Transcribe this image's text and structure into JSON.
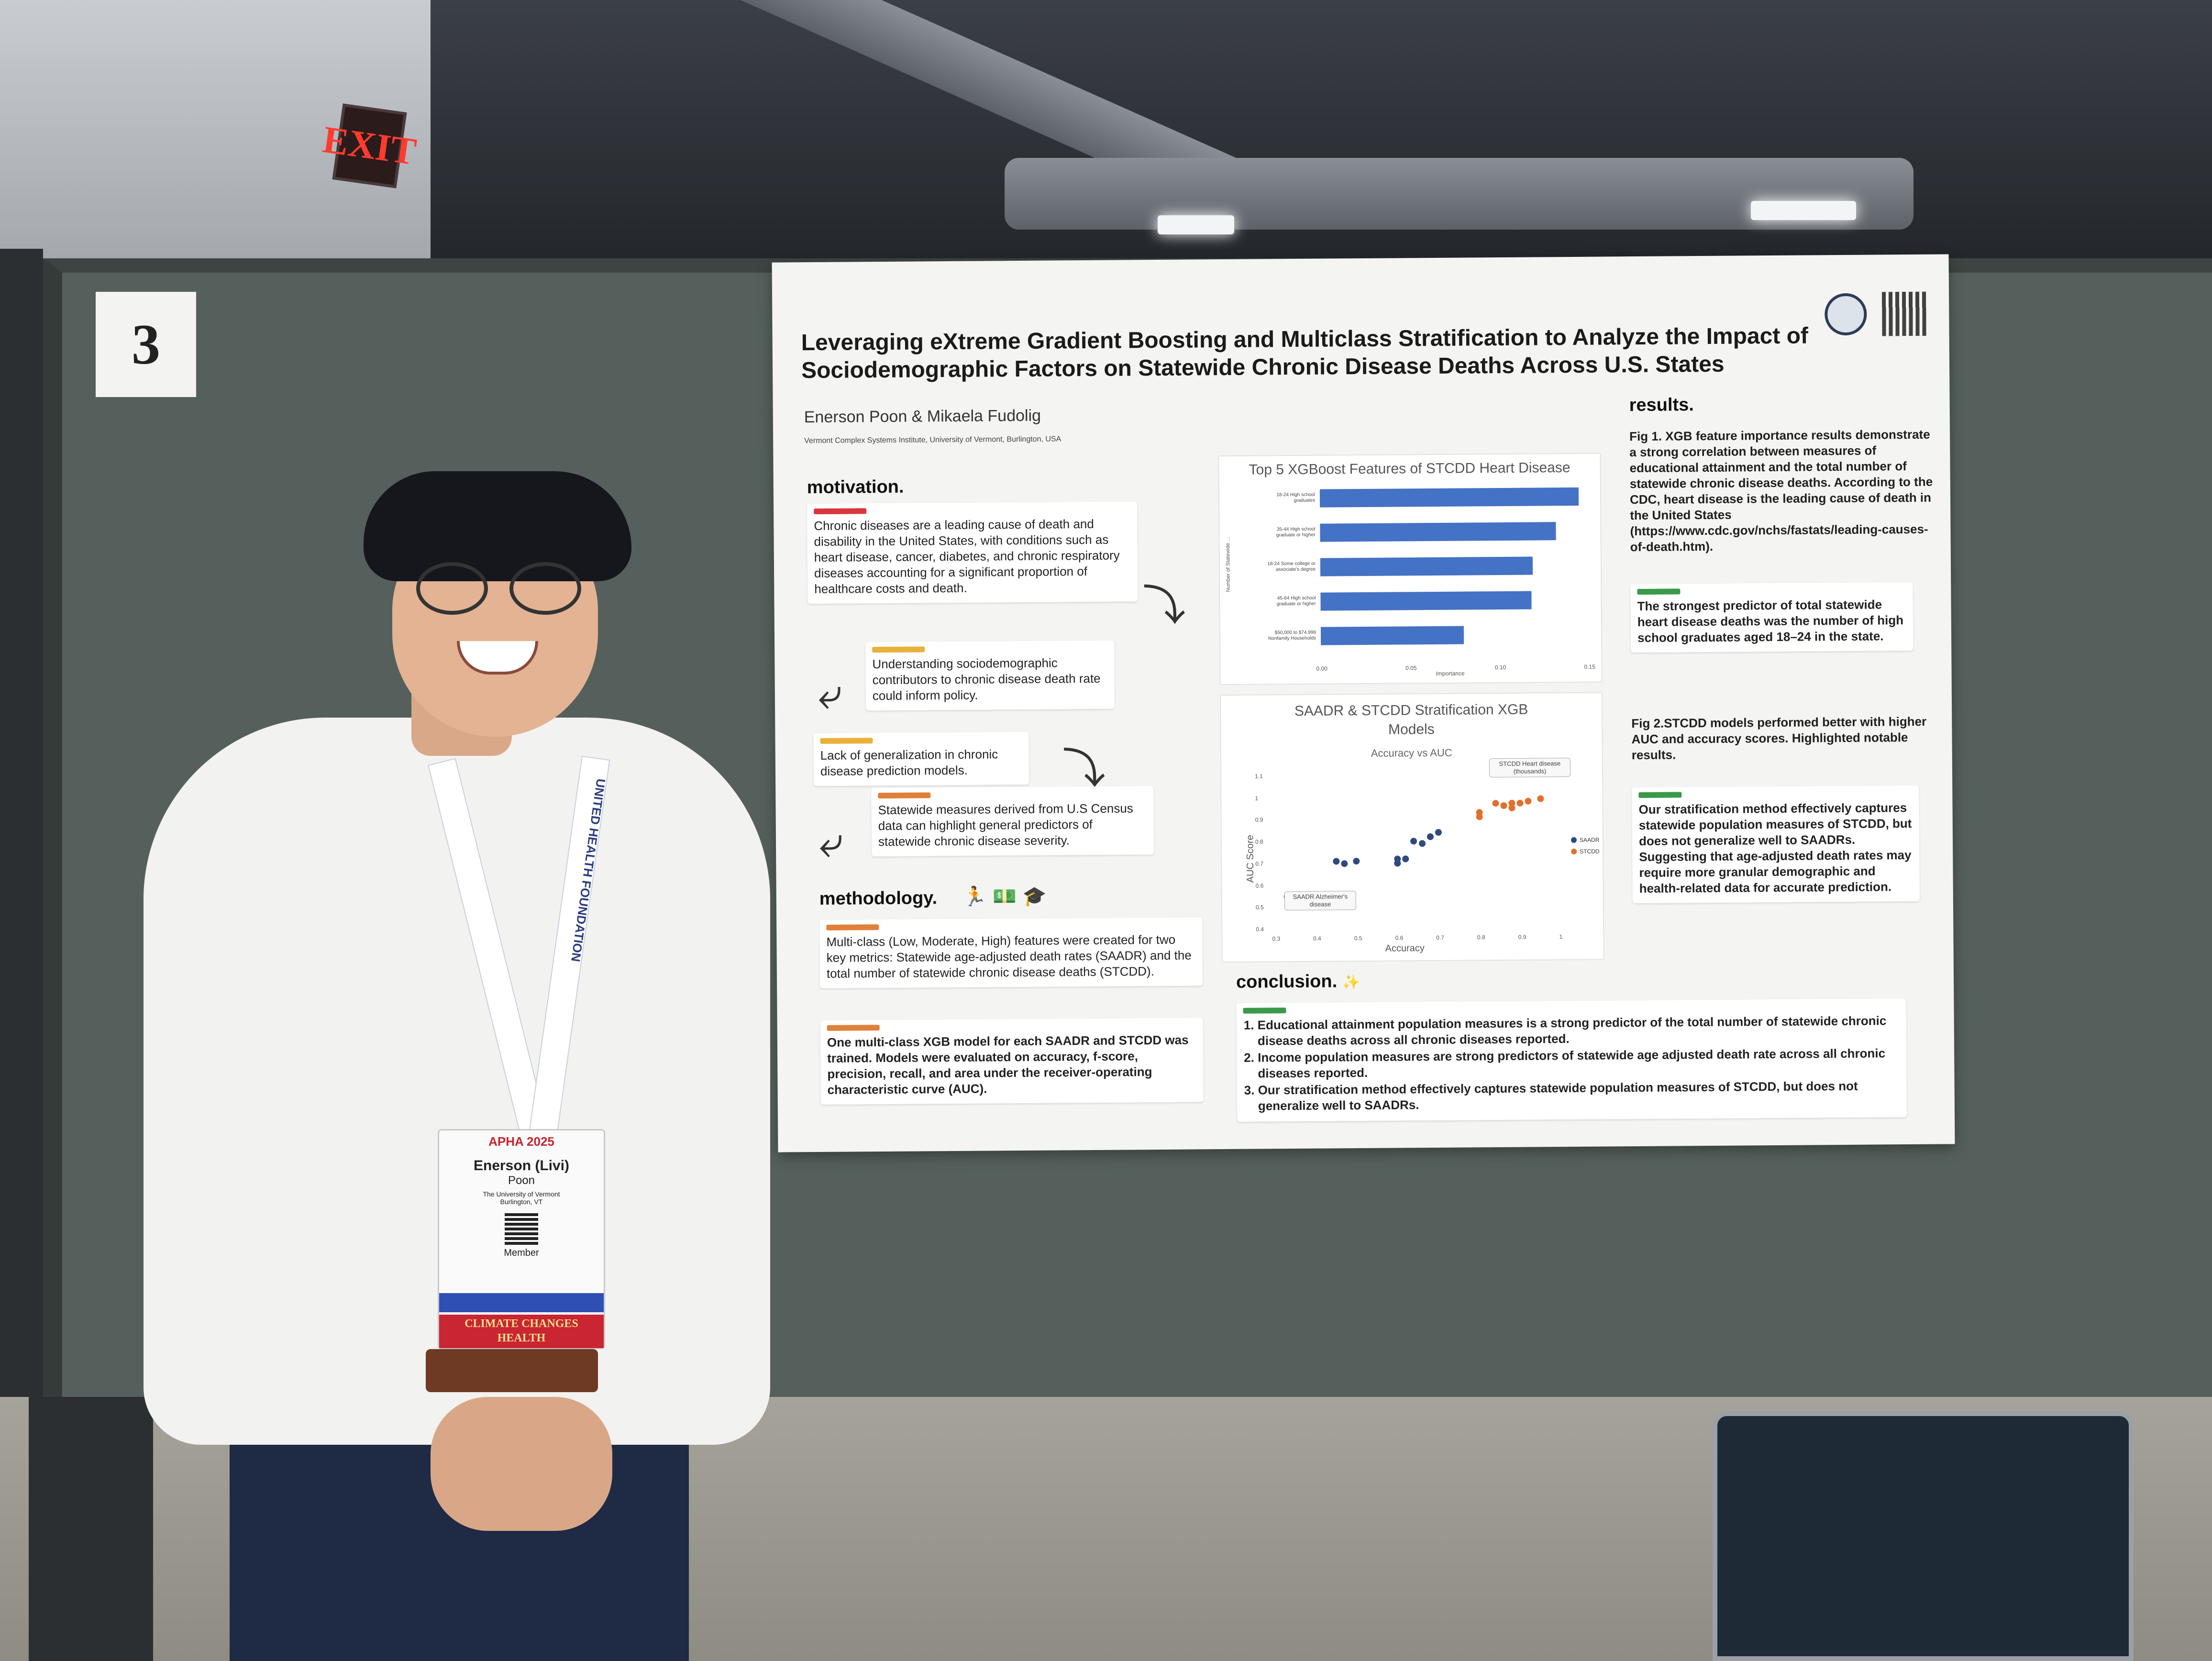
{
  "scene": {
    "exit_sign": "EXIT",
    "board_number": "3"
  },
  "poster": {
    "title": "Leveraging eXtreme Gradient Boosting and Multiclass Stratification to Analyze the Impact of Sociodemographic Factors on Statewide Chronic Disease Deaths Across U.S. States",
    "authors": "Enerson Poon & Mikaela Fudolig",
    "affiliation": "Vermont Complex Systems Institute, University of Vermont, Burlington, USA",
    "motivation": {
      "heading": "motivation.",
      "card1": "Chronic diseases are a leading cause of death and disability in the United States, with conditions such as heart disease, cancer, diabetes, and chronic respiratory diseases accounting for a significant proportion of healthcare costs and death.",
      "card2": "Understanding sociodemographic contributors to chronic disease death rate could inform policy.",
      "card3": "Lack of generalization in chronic disease prediction models.",
      "card4": "Statewide measures derived from U.S Census data can highlight general predictors of statewide chronic disease severity."
    },
    "methodology": {
      "heading": "methodology.",
      "card1": "Multi-class (Low, Moderate, High) features were created for two key metrics: Statewide age-adjusted death rates (SAADR) and the total number of statewide chronic disease deaths (STCDD).",
      "card2": "One multi-class XGB model for each SAADR and STCDD was trained. Models were evaluated on accuracy, f-score, precision, recall, and area under the receiver-operating characteristic curve (AUC)."
    },
    "results": {
      "heading": "results.",
      "fig1": "Fig 1. XGB feature importance results demonstrate a strong correlation between measures of educational attainment and the total number of statewide chronic disease deaths. According to the CDC, heart disease is the leading cause of death in the United States (https://www.cdc.gov/nchs/fastats/leading-causes-of-death.htm).",
      "highlight1": "The strongest predictor of total statewide heart disease deaths was the number of high school graduates aged 18–24 in the state.",
      "fig2": "Fig 2.STCDD models performed better with higher AUC and accuracy scores. Highlighted notable results.",
      "highlight2": "Our stratification method effectively captures statewide population measures of STCDD, but does not generalize well to SAADRs. Suggesting that age-adjusted death rates may require more granular demographic and health-related data for accurate prediction."
    },
    "conclusion": {
      "heading": "conclusion.",
      "items": [
        "Educational attainment population measures is a strong predictor of the total number of statewide chronic disease deaths across all chronic diseases reported.",
        "Income population measures are strong predictors of statewide age adjusted death rate across all chronic diseases reported.",
        "Our stratification method effectively captures statewide population measures of STCDD, but does not generalize well to SAADRs."
      ]
    }
  },
  "badge": {
    "event": "APHA 2025",
    "name": "Enerson (Livi)",
    "surname": "Poon",
    "org": "The University of Vermont",
    "city": "Burlington, VT",
    "role": "Member",
    "ribbon": "CLIMATE CHANGES HEALTH",
    "lanyard_text": "UNITED HEALTH FOUNDATION"
  },
  "chart_data": [
    {
      "type": "bar",
      "title": "Top 5 XGBoost Features of STCDD Heart Disease",
      "xlabel": "Importance",
      "ylabel": "Number of Statewide ...",
      "categories": [
        "18-24 High school graduates",
        "35-44 High school graduate or higher",
        "18-24 Some college or associate's degree",
        "45-64 High school graduate or higher",
        "$50,000 to $74,999 Nonfamily Households"
      ],
      "values": [
        0.145,
        0.132,
        0.119,
        0.118,
        0.08
      ],
      "xlim": [
        0,
        0.15
      ],
      "xticks": [
        "0.00",
        "0.05",
        "0.10",
        "0.15"
      ],
      "colors": {
        "bar": "#4472c4"
      },
      "grid": false
    },
    {
      "type": "scatter",
      "title": "SAADR & STCDD Stratification XGB Models",
      "subtitle": "Accuracy vs AUC",
      "xlabel": "Accuracy",
      "ylabel": "AUC Score",
      "xlim": [
        0.3,
        1.0
      ],
      "ylim": [
        0.4,
        1.1
      ],
      "xticks": [
        "0.3",
        "0.4",
        "0.5",
        "0.6",
        "0.7",
        "0.8",
        "0.9",
        "1"
      ],
      "yticks": [
        "0.4",
        "0.5",
        "0.6",
        "0.7",
        "0.8",
        "0.9",
        "1",
        "1.1"
      ],
      "legend_position": "right",
      "annotations": [
        "STCDD Heart disease (thousands)",
        "SAADR Alzheimer's disease"
      ],
      "series": [
        {
          "name": "SAADR",
          "color": "#2e4a7d",
          "x": [
            0.33,
            0.45,
            0.47,
            0.5,
            0.6,
            0.6,
            0.62,
            0.64,
            0.66,
            0.68,
            0.7
          ],
          "y": [
            0.55,
            0.71,
            0.7,
            0.71,
            0.7,
            0.72,
            0.72,
            0.8,
            0.79,
            0.82,
            0.84
          ]
        },
        {
          "name": "STCDD",
          "color": "#e0702c",
          "x": [
            0.8,
            0.8,
            0.84,
            0.86,
            0.88,
            0.88,
            0.9,
            0.92,
            0.95
          ],
          "y": [
            0.91,
            0.93,
            0.97,
            0.96,
            0.97,
            0.95,
            0.97,
            0.98,
            0.99
          ]
        }
      ]
    }
  ],
  "colors": {
    "board": "#55605c",
    "poster": "#f4f4f2",
    "tag_red": "#d9363e",
    "tag_yellow": "#e8b23a",
    "tag_green": "#3a9a4a",
    "tag_orange": "#e0813a"
  }
}
